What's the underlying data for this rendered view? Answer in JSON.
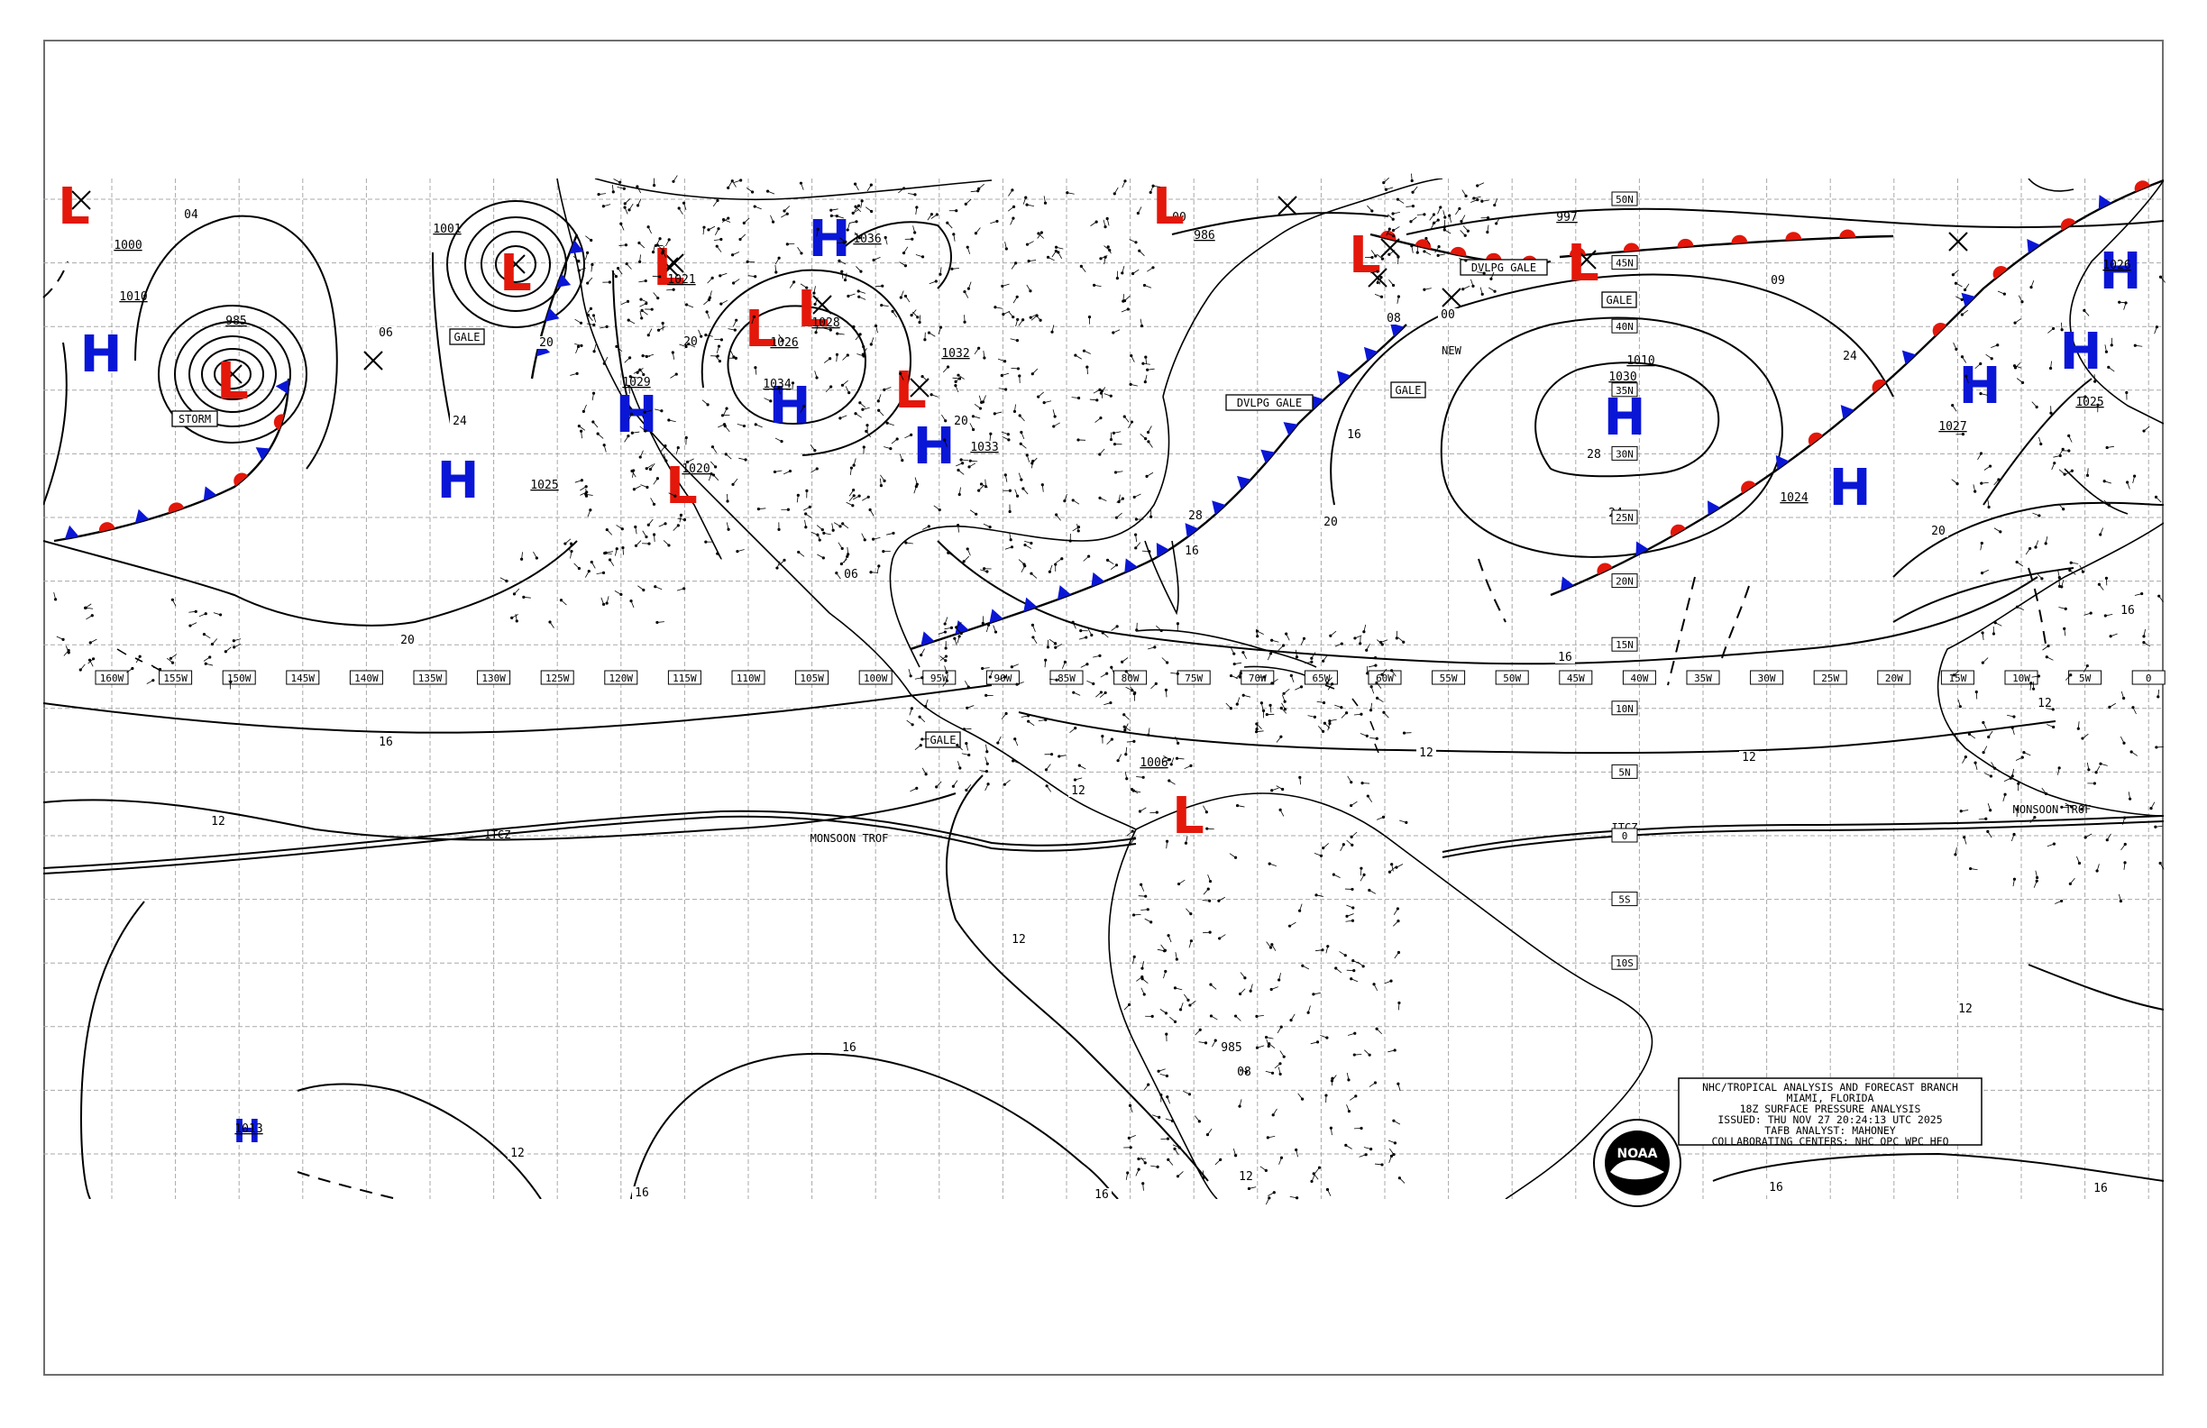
{
  "title_block": {
    "line1": "NHC/TROPICAL ANALYSIS AND FORECAST BRANCH",
    "line2": "MIAMI, FLORIDA",
    "line3": "18Z SURFACE PRESSURE ANALYSIS",
    "line4": "ISSUED: THU NOV 27 20:24:13 UTC 2025",
    "line5": "TAFB ANALYST: MAHONEY",
    "line6": "COLLABORATING CENTERS: NHC OPC WPC HFO"
  },
  "logo_text": "NOAA",
  "longitude_labels": [
    "160W",
    "155W",
    "150W",
    "145W",
    "140W",
    "135W",
    "130W",
    "125W",
    "120W",
    "115W",
    "110W",
    "105W",
    "100W",
    "95W",
    "90W",
    "85W",
    "80W",
    "75W",
    "70W",
    "65W",
    "60W",
    "55W",
    "50W",
    "45W",
    "40W",
    "35W",
    "30W",
    "25W",
    "20W",
    "15W",
    "10W",
    "5W",
    "0"
  ],
  "latitude_labels": [
    "50N",
    "45N",
    "40N",
    "35N",
    "30N",
    "25N",
    "20N",
    "15N",
    "10N",
    "5N",
    "0",
    "5S",
    "10S"
  ],
  "pressure_centers": [
    {
      "type": "L",
      "value": "985",
      "tag": "STORM"
    },
    {
      "type": "L",
      "value": "1001",
      "tag": "GALE"
    },
    {
      "type": "H",
      "value": "1010"
    },
    {
      "type": "H",
      "value": "1025"
    },
    {
      "type": "H",
      "value": "1029"
    },
    {
      "type": "L",
      "value": "1021"
    },
    {
      "type": "L",
      "value": "1020"
    },
    {
      "type": "H",
      "value": "1036"
    },
    {
      "type": "H",
      "value": "1034"
    },
    {
      "type": "L",
      "value": "1026"
    },
    {
      "type": "L",
      "value": "1028"
    },
    {
      "type": "L",
      "value": "1032"
    },
    {
      "type": "H",
      "value": "1033"
    },
    {
      "type": "L",
      "value": "986"
    },
    {
      "type": "L",
      "value": "997"
    },
    {
      "type": "L",
      "value": "1010"
    },
    {
      "type": "H",
      "value": "1030"
    },
    {
      "type": "H",
      "value": "1024"
    },
    {
      "type": "H",
      "value": "1027"
    },
    {
      "type": "H",
      "value": "1025"
    },
    {
      "type": "H",
      "value": "1026"
    },
    {
      "type": "L",
      "value": "1006"
    },
    {
      "type": "H",
      "value": "1013"
    },
    {
      "type": "L",
      "value": "1000"
    }
  ],
  "isobar_labels": [
    "04",
    "06",
    "20",
    "24",
    "16",
    "12",
    "08",
    "28",
    "00",
    "09",
    "985"
  ],
  "tags": {
    "storm": "STORM",
    "gale": "GALE",
    "dvlpg_gale": "DVLPG GALE",
    "new": "NEW",
    "itcz": "ITCZ",
    "monsoon_trof": "MONSOON TROF"
  },
  "colors": {
    "low": "#e3170a",
    "high": "#0a16d6",
    "cold_front": "#0a16d6",
    "warm_front": "#e3170a",
    "occluded": "#8a2be2",
    "isobar": "#000000",
    "grid": "#a8a8a8"
  }
}
